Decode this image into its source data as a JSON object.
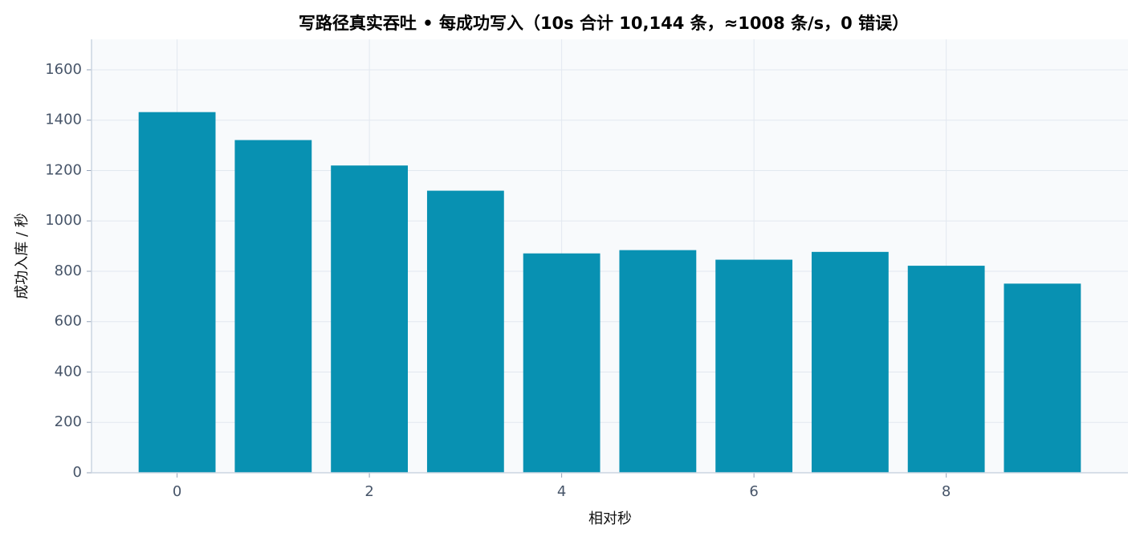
{
  "chart_data": {
    "type": "bar",
    "title": "写路径真实吞吐 • 每成功写入（10s 合计 10,144 条，≈1008 条/s，0 错误）",
    "x_label": "相对秒",
    "y_label": "成功入库 / 秒",
    "x": [
      0,
      1,
      2,
      3,
      4,
      5,
      6,
      7,
      8,
      9
    ],
    "values": [
      1432,
      1321,
      1220,
      1120,
      871,
      884,
      846,
      877,
      822,
      751
    ],
    "color": "#0891b2",
    "xlim": [
      -0.89,
      9.89
    ],
    "xticks": [
      0,
      2,
      4,
      6,
      8
    ],
    "ylim": [
      0,
      1721
    ],
    "yticks": [
      0,
      200,
      400,
      600,
      800,
      1000,
      1200,
      1400,
      1600
    ],
    "grid": true
  }
}
